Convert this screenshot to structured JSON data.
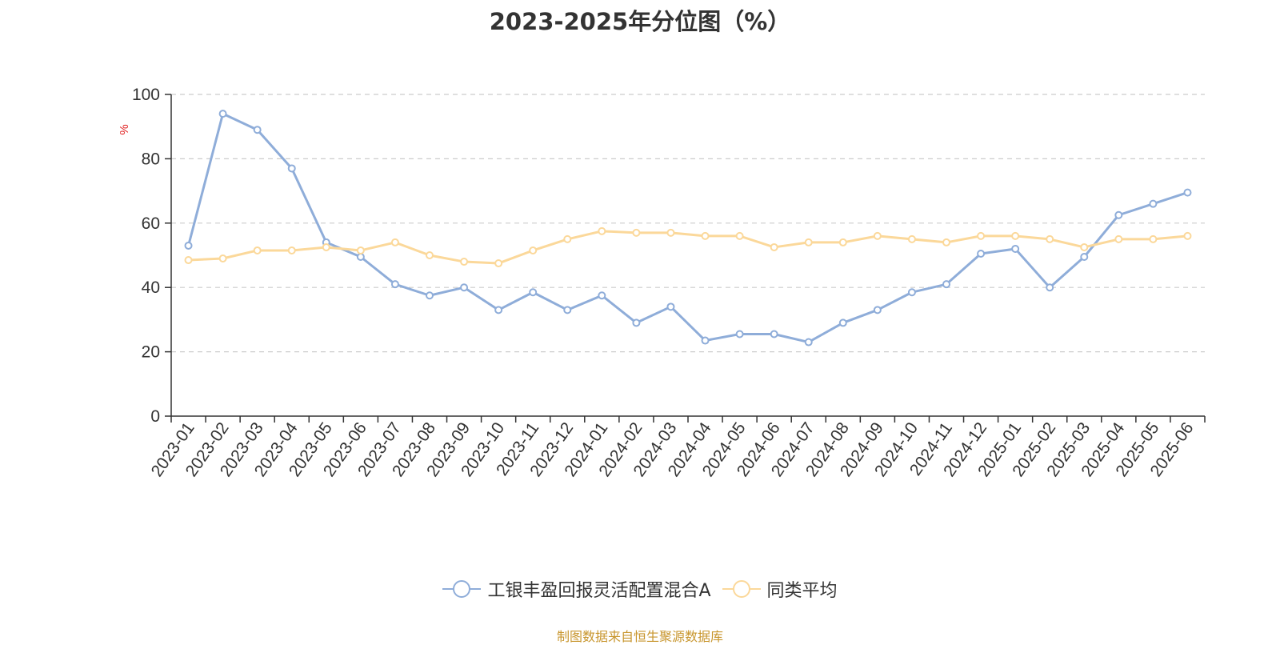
{
  "chart_data": {
    "type": "line",
    "title": "2023-2025年分位图（%）",
    "ylabel": "%",
    "xlabel": "",
    "ylim": [
      0,
      100
    ],
    "yticks": [
      0,
      20,
      40,
      60,
      80,
      100
    ],
    "grid": true,
    "legend_position": "bottom",
    "categories": [
      "2023-01",
      "2023-02",
      "2023-03",
      "2023-04",
      "2023-05",
      "2023-06",
      "2023-07",
      "2023-08",
      "2023-09",
      "2023-10",
      "2023-11",
      "2023-12",
      "2024-01",
      "2024-02",
      "2024-03",
      "2024-04",
      "2024-05",
      "2024-06",
      "2024-07",
      "2024-08",
      "2024-09",
      "2024-10",
      "2024-11",
      "2024-12",
      "2025-01",
      "2025-02",
      "2025-03",
      "2025-04",
      "2025-05",
      "2025-06"
    ],
    "series": [
      {
        "name": "工银丰盈回报灵活配置混合A",
        "color": "#8fadd9",
        "values": [
          53,
          94,
          89,
          77,
          54,
          49.5,
          41,
          37.5,
          40,
          33,
          38.5,
          33,
          37.5,
          29,
          34,
          23.5,
          25.5,
          25.5,
          23,
          29,
          33,
          38.5,
          41,
          50.5,
          52,
          40,
          49.5,
          62.5,
          66,
          69.5
        ]
      },
      {
        "name": "同类平均",
        "color": "#fbd89a",
        "values": [
          48.5,
          49,
          51.5,
          51.5,
          52.5,
          51.5,
          54,
          50,
          48,
          47.5,
          51.5,
          55,
          57.5,
          57,
          57,
          56,
          56,
          52.5,
          54,
          54,
          56,
          55,
          54,
          56,
          56,
          55,
          52.5,
          55,
          55,
          56
        ]
      }
    ]
  },
  "source_note": "制图数据来自恒生聚源数据库"
}
